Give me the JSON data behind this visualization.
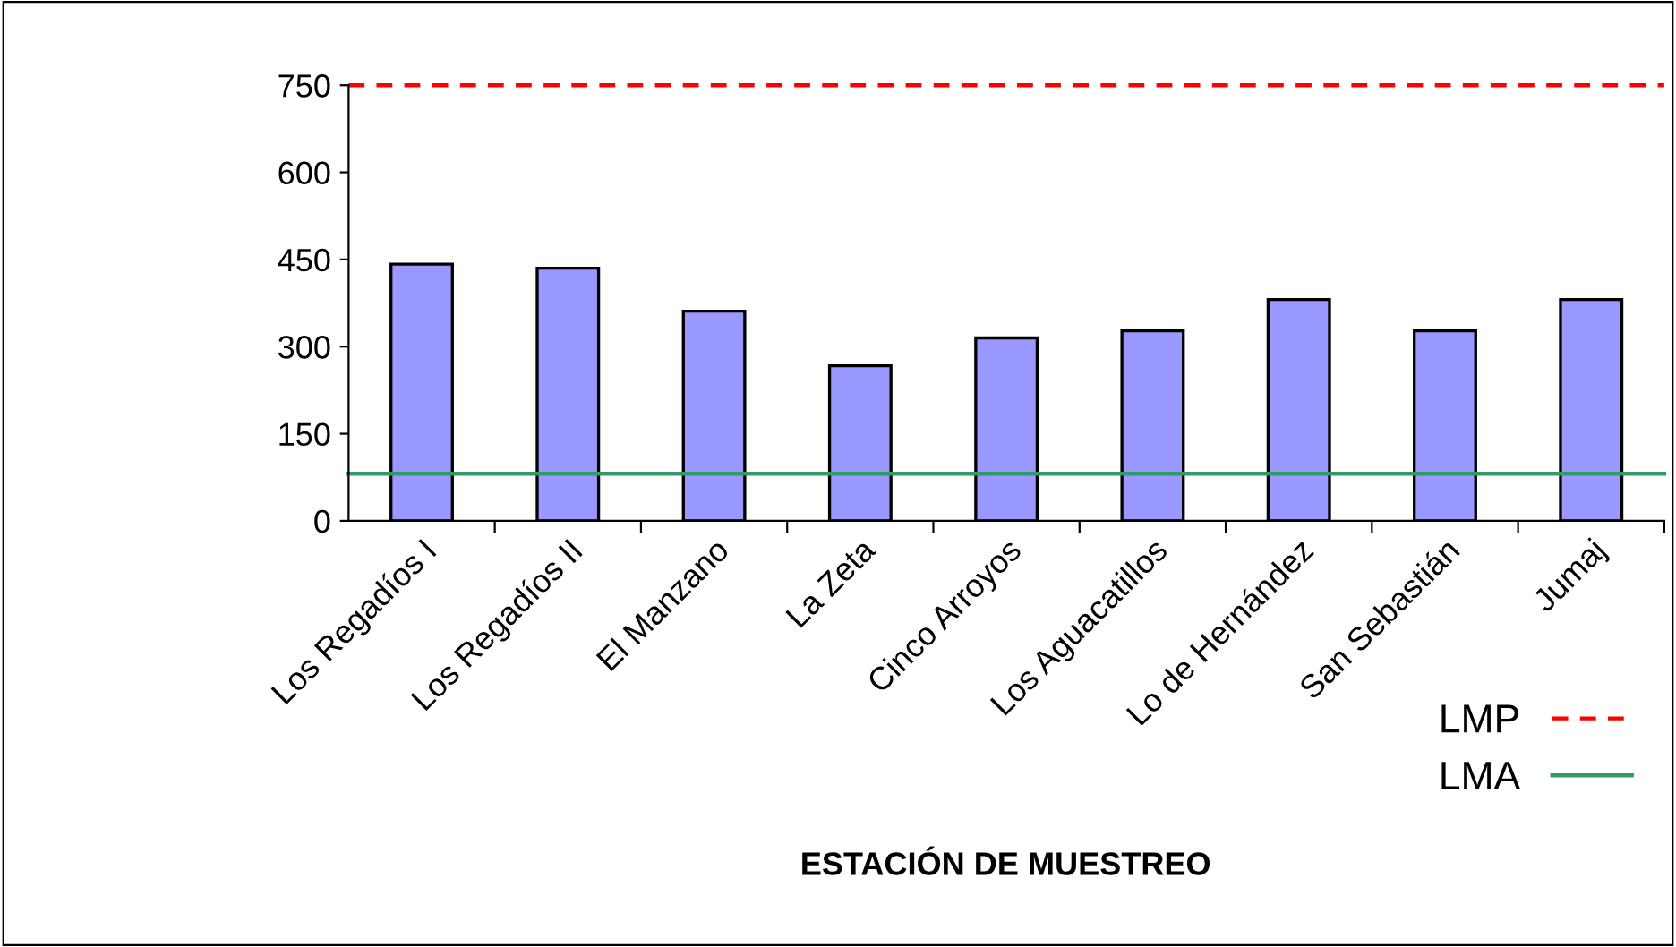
{
  "chart_data": {
    "type": "bar",
    "xlabel": "ESTACIÓN DE MUESTREO",
    "categories": [
      "Los Regadíos I",
      "Los Regadíos II",
      "El Manzano",
      "La Zeta",
      "Cinco Arroyos",
      "Los Aguacatillos",
      "Lo de Hernández",
      "San Sebastián",
      "Jumaj"
    ],
    "values": [
      442,
      435,
      361,
      267,
      315,
      327,
      381,
      327,
      381
    ],
    "color": "#9999ff",
    "ylim": [
      0,
      750
    ],
    "yticks": [
      0,
      150,
      300,
      450,
      600,
      750
    ],
    "grid": false,
    "legend": "bottom right",
    "ref_lines": [
      {
        "axis": "y",
        "value": 750,
        "label": "LMP",
        "color": "#ff0000",
        "line_style": "dashed"
      },
      {
        "axis": "y",
        "value": 81,
        "label": "LMA",
        "color": "#339966",
        "line_style": "solid"
      }
    ]
  }
}
